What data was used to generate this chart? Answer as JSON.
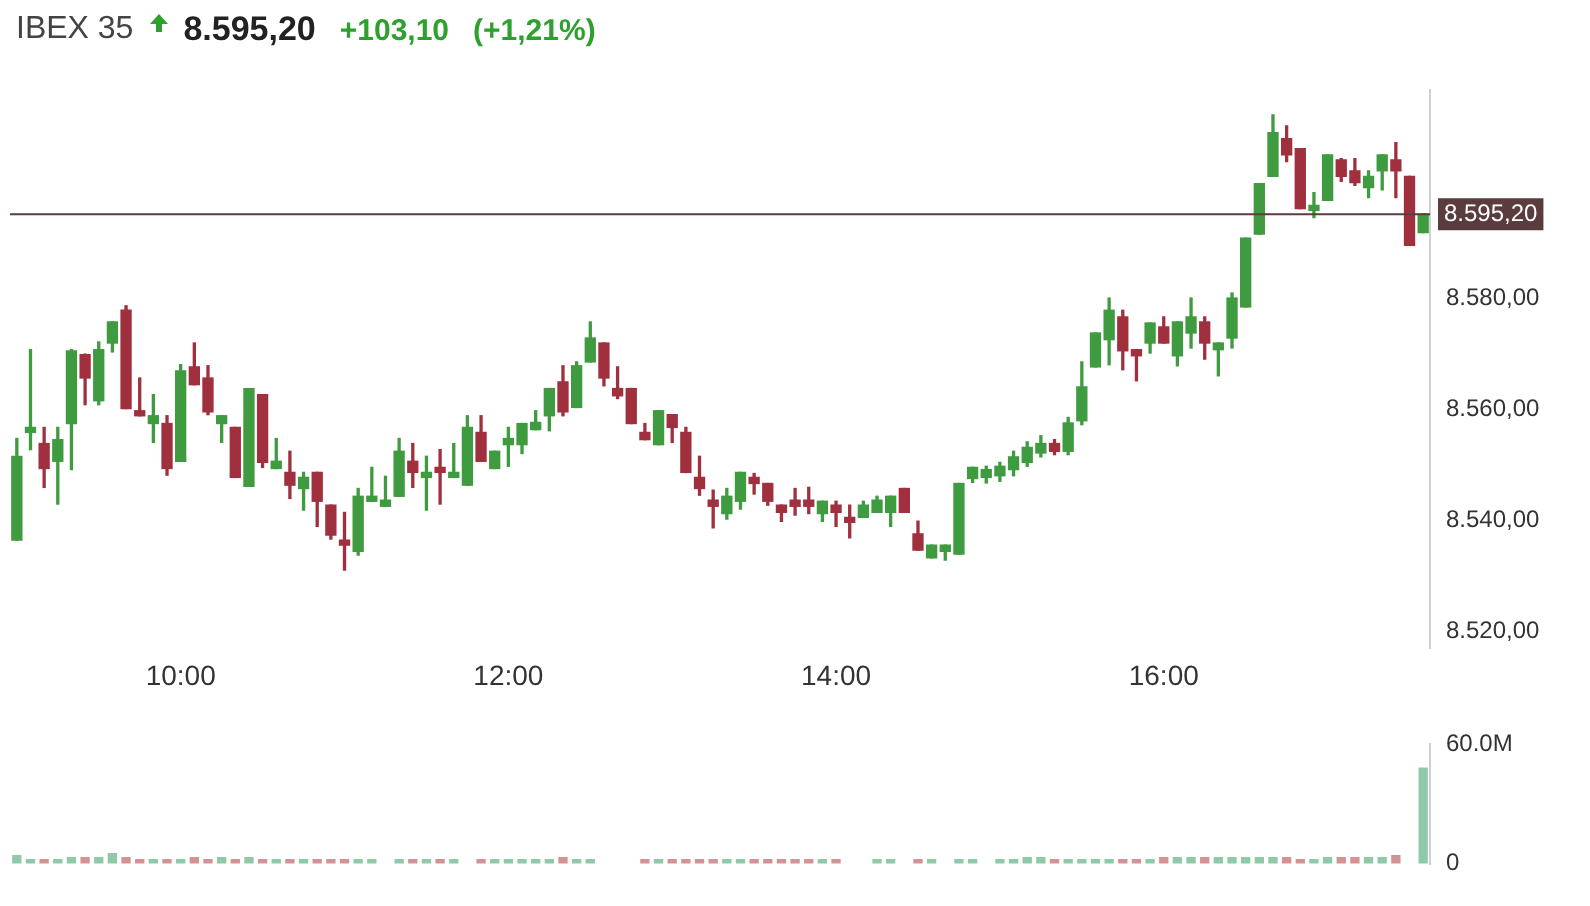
{
  "chart_data": [
    {
      "type": "candlestick",
      "title": "IBEX 35",
      "subtitle": "8.595,20",
      "annotations": [
        "+103,10",
        "(+1,21%)"
      ],
      "categories": [
        null,
        null,
        null,
        null,
        null,
        null,
        null,
        null,
        null,
        null,
        null,
        null,
        "10:00",
        null,
        null,
        null,
        null,
        null,
        null,
        null,
        null,
        null,
        null,
        null,
        null,
        null,
        null,
        null,
        null,
        null,
        null,
        null,
        null,
        null,
        null,
        null,
        "12:00",
        null,
        null,
        null,
        null,
        null,
        null,
        null,
        null,
        null,
        null,
        null,
        null,
        null,
        null,
        null,
        null,
        null,
        null,
        null,
        null,
        null,
        null,
        null,
        "14:00",
        null,
        null,
        null,
        null,
        null,
        null,
        null,
        null,
        null,
        null,
        null,
        null,
        null,
        null,
        null,
        null,
        null,
        null,
        null,
        null,
        null,
        null,
        null,
        "16:00",
        null,
        null,
        null,
        null,
        null,
        null,
        null,
        null,
        null,
        null,
        null,
        null,
        null,
        null,
        null,
        null,
        null,
        null,
        null
      ],
      "ohlc": [
        [
          8536.5,
          8554.8,
          8536.5,
          8551.6
        ],
        [
          8555.9,
          8570.8,
          8552.8,
          8556.8
        ],
        [
          8553.9,
          8556.8,
          8546,
          8549.4
        ],
        [
          8550.7,
          8556.8,
          8543,
          8554.6
        ],
        [
          8557.5,
          8570.8,
          8549.2,
          8570.6
        ],
        [
          8569.9,
          8570,
          8560.9,
          8565.7
        ],
        [
          8561.6,
          8572.2,
          8560.9,
          8570.8
        ],
        [
          8572,
          8575.8,
          8570.4,
          8575.8
        ],
        [
          8577.9,
          8578.7,
          8560.2,
          8560.2
        ],
        [
          8559.8,
          8565.7,
          8558.9,
          8558.9
        ],
        [
          8557.5,
          8562.7,
          8554.1,
          8558.9
        ],
        [
          8557.5,
          8558.9,
          8548.2,
          8549.4
        ],
        [
          8550.7,
          8568.1,
          8550.7,
          8567
        ],
        [
          8567.7,
          8572,
          8564.5,
          8564.5
        ],
        [
          8565.7,
          8567.9,
          8559.1,
          8559.6
        ],
        [
          8557.5,
          8558.9,
          8554.1,
          8558.9
        ],
        [
          8556.8,
          8556.8,
          8547.8,
          8547.8
        ],
        [
          8546.2,
          8563.8,
          8546.2,
          8563.8
        ],
        [
          8562.7,
          8562.7,
          8549.6,
          8550.5
        ],
        [
          8549.4,
          8554.8,
          8549.4,
          8550.7
        ],
        [
          8548.7,
          8552.5,
          8544,
          8546.4
        ],
        [
          8545.8,
          8548.7,
          8541.9,
          8547.8
        ],
        [
          8548.7,
          8548.7,
          8539,
          8543.5
        ],
        [
          8542.8,
          8542.8,
          8536.7,
          8537.4
        ],
        [
          8536.5,
          8541.5,
          8531.1,
          8535.6
        ],
        [
          8534.5,
          8545.8,
          8533.8,
          8544.4
        ],
        [
          8543.5,
          8549.6,
          8543.5,
          8544.4
        ],
        [
          8542.6,
          8548,
          8542.6,
          8543.7
        ],
        [
          8544.4,
          8554.8,
          8544.4,
          8552.5
        ],
        [
          8550.7,
          8553.9,
          8546,
          8548.7
        ],
        [
          8547.8,
          8551.6,
          8541.9,
          8548.7
        ],
        [
          8549.6,
          8552.8,
          8543,
          8548.7
        ],
        [
          8547.8,
          8553.9,
          8547.8,
          8548.7
        ],
        [
          8546.4,
          8558.9,
          8546.4,
          8556.8
        ],
        [
          8555.9,
          8558.9,
          8550.7,
          8550.7
        ],
        [
          8549.4,
          8552.5,
          8549.4,
          8552.5
        ],
        [
          8553.7,
          8556.8,
          8549.8,
          8554.8
        ],
        [
          8553.7,
          8557.5,
          8552.1,
          8557.5
        ],
        [
          8556.4,
          8559.8,
          8556.4,
          8557.7
        ],
        [
          8558.9,
          8563.8,
          8556.2,
          8563.8
        ],
        [
          8565,
          8567.9,
          8558.9,
          8559.6
        ],
        [
          8560.4,
          8568.6,
          8560.4,
          8567.9
        ],
        [
          8568.6,
          8575.8,
          8568.6,
          8572.9
        ],
        [
          8572,
          8572,
          8564.3,
          8565.7
        ],
        [
          8563.8,
          8567.7,
          8562,
          8562.5
        ],
        [
          8563.8,
          8563.8,
          8557.5,
          8557.5
        ],
        [
          8555.9,
          8557.5,
          8554.6,
          8554.6
        ],
        [
          8553.7,
          8559.8,
          8553.7,
          8559.8
        ],
        [
          8559.1,
          8559.1,
          8554.1,
          8556.8
        ],
        [
          8555.9,
          8556.8,
          8548.7,
          8548.7
        ],
        [
          8547.8,
          8551.6,
          8544.6,
          8545.8
        ],
        [
          8543.7,
          8545.5,
          8538.7,
          8542.6
        ],
        [
          8541.3,
          8545.8,
          8540.3,
          8544.4
        ],
        [
          8543.5,
          8548.7,
          8542.1,
          8548.7
        ],
        [
          8547.8,
          8548.5,
          8544.8,
          8546.7
        ],
        [
          8546.7,
          8546.7,
          8542.8,
          8543.5
        ],
        [
          8542.8,
          8542.8,
          8539.9,
          8541.5
        ],
        [
          8543.7,
          8545.8,
          8541,
          8542.6
        ],
        [
          8543.7,
          8546,
          8541.3,
          8542.6
        ],
        [
          8541.3,
          8543.5,
          8539.9,
          8543.5
        ],
        [
          8542.8,
          8543.5,
          8539,
          8541.5
        ],
        [
          8540.6,
          8542.8,
          8536.9,
          8539.7
        ],
        [
          8540.6,
          8543.5,
          8540.6,
          8542.8
        ],
        [
          8541.5,
          8544.4,
          8541.5,
          8543.7
        ],
        [
          8541.5,
          8544.4,
          8539,
          8544.4
        ],
        [
          8545.8,
          8545.8,
          8541.5,
          8541.5
        ],
        [
          8537.6,
          8539.9,
          8534.7,
          8534.7
        ],
        [
          8533.3,
          8535.6,
          8533.3,
          8535.6
        ],
        [
          8534.5,
          8535.6,
          8532.9,
          8535.6
        ],
        [
          8534,
          8546.7,
          8534,
          8546.7
        ],
        [
          8547.6,
          8549.6,
          8546.9,
          8549.6
        ],
        [
          8547.8,
          8549.8,
          8546.8,
          8549.2
        ],
        [
          8548.1,
          8550.5,
          8547.1,
          8549.8
        ],
        [
          8549.2,
          8552.5,
          8548.1,
          8551.5
        ],
        [
          8550.5,
          8554.2,
          8549.8,
          8553.2
        ],
        [
          8552.2,
          8555.3,
          8551.5,
          8553.9
        ],
        [
          8553.9,
          8554.6,
          8551.9,
          8552.5
        ],
        [
          8552.5,
          8558.6,
          8551.9,
          8557.6
        ],
        [
          8558,
          8568.6,
          8557.3,
          8564.1
        ],
        [
          8567.7,
          8573.8,
          8567.7,
          8573.8
        ],
        [
          8572.6,
          8580.1,
          8568.1,
          8577.9
        ],
        [
          8576.7,
          8577.9,
          8567.2,
          8570.6
        ],
        [
          8570.8,
          8570.8,
          8565.2,
          8569.7
        ],
        [
          8572,
          8575.6,
          8570.2,
          8575.6
        ],
        [
          8574.9,
          8576.7,
          8572,
          8572
        ],
        [
          8569.7,
          8575.8,
          8567.9,
          8575.8
        ],
        [
          8573.8,
          8580.1,
          8571.1,
          8576.7
        ],
        [
          8575.8,
          8576.7,
          8569.1,
          8572
        ],
        [
          8570.8,
          8572,
          8566.1,
          8572
        ],
        [
          8572.9,
          8581,
          8571.1,
          8580.1
        ],
        [
          8578.5,
          8590.9,
          8578.5,
          8590.9
        ],
        [
          8591.6,
          8600.7,
          8591.6,
          8600.7
        ],
        [
          8602,
          8613.1,
          8602,
          8609.9
        ],
        [
          8608.8,
          8611.1,
          8604.7,
          8605.9
        ],
        [
          8607,
          8607,
          8596.2,
          8596.2
        ],
        [
          8595.9,
          8599.1,
          8594.6,
          8596.8
        ],
        [
          8597.7,
          8605.9,
          8597.7,
          8605.9
        ],
        [
          8605,
          8605.2,
          8601.1,
          8602
        ],
        [
          8603,
          8605.2,
          8600.4,
          8600.9
        ],
        [
          8600,
          8603,
          8598.2,
          8602
        ],
        [
          8603,
          8605.9,
          8599.6,
          8605.9
        ],
        [
          8605,
          8608.1,
          8598.2,
          8603
        ],
        [
          8602,
          8602,
          8589.6,
          8589.6
        ],
        [
          8591.9,
          8595.2,
          8591.9,
          8595.2
        ]
      ],
      "colors": [
        "#3f9b3f",
        "#3f9b3f",
        "#a0303e",
        "#3f9b3f",
        "#3f9b3f",
        "#a0303e",
        "#3f9b3f",
        "#3f9b3f",
        "#a0303e",
        "#a0303e",
        "#3f9b3f",
        "#a0303e",
        "#3f9b3f",
        "#a0303e",
        "#a0303e",
        "#3f9b3f",
        "#a0303e",
        "#3f9b3f",
        "#a0303e",
        "#3f9b3f",
        "#a0303e",
        "#3f9b3f",
        "#a0303e",
        "#a0303e",
        "#a0303e",
        "#3f9b3f",
        "#3f9b3f",
        "#3f9b3f",
        "#3f9b3f",
        "#a0303e",
        "#3f9b3f",
        "#a0303e",
        "#3f9b3f",
        "#3f9b3f",
        "#a0303e",
        "#3f9b3f",
        "#3f9b3f",
        "#3f9b3f",
        "#3f9b3f",
        "#3f9b3f",
        "#a0303e",
        "#3f9b3f",
        "#3f9b3f",
        "#a0303e",
        "#a0303e",
        "#a0303e",
        "#a0303e",
        "#3f9b3f",
        "#a0303e",
        "#a0303e",
        "#a0303e",
        "#a0303e",
        "#3f9b3f",
        "#3f9b3f",
        "#a0303e",
        "#a0303e",
        "#a0303e",
        "#a0303e",
        "#a0303e",
        "#3f9b3f",
        "#a0303e",
        "#a0303e",
        "#3f9b3f",
        "#3f9b3f",
        "#3f9b3f",
        "#a0303e",
        "#a0303e",
        "#3f9b3f",
        "#3f9b3f",
        "#3f9b3f",
        "#3f9b3f",
        "#3f9b3f",
        "#3f9b3f",
        "#3f9b3f",
        "#3f9b3f",
        "#3f9b3f",
        "#a0303e",
        "#3f9b3f",
        "#3f9b3f",
        "#3f9b3f",
        "#3f9b3f",
        "#a0303e",
        "#a0303e",
        "#3f9b3f",
        "#a0303e",
        "#3f9b3f",
        "#3f9b3f",
        "#a0303e",
        "#3f9b3f",
        "#3f9b3f",
        "#3f9b3f",
        "#3f9b3f",
        "#3f9b3f",
        "#a0303e",
        "#a0303e",
        "#3f9b3f",
        "#3f9b3f",
        "#a0303e",
        "#a0303e",
        "#3f9b3f",
        "#3f9b3f",
        "#a0303e",
        "#a0303e",
        "#3f9b3f"
      ],
      "ylim": [
        8517,
        8617.5
      ],
      "yticks": [
        {
          "value": 8520,
          "label": "8.520,00"
        },
        {
          "value": 8540,
          "label": "8.540,00"
        },
        {
          "value": 8560,
          "label": "8.560,00"
        },
        {
          "value": 8580,
          "label": "8.580,00"
        }
      ],
      "ref_lines": [
        {
          "axis": "y",
          "value": 8595.2,
          "label": "8.595,20",
          "color": "#5a3c3c"
        }
      ]
    },
    {
      "type": "bar",
      "categories": [
        null,
        null,
        null,
        null,
        null,
        null,
        null,
        null,
        null,
        null,
        null,
        null,
        null,
        null,
        null,
        null,
        null,
        null,
        null,
        null,
        null,
        null,
        null,
        null,
        null,
        null,
        null,
        null,
        null,
        null,
        null,
        null,
        null,
        null,
        null,
        null,
        null,
        null,
        null,
        null,
        null,
        null,
        null,
        null,
        null,
        null,
        null,
        null,
        null,
        null,
        null,
        null,
        null,
        null,
        null,
        null,
        null,
        null,
        null,
        null,
        null,
        null,
        null,
        null,
        null,
        null,
        null,
        null,
        null,
        null,
        null,
        null,
        null,
        null,
        null,
        null,
        null,
        null,
        null,
        null,
        null,
        null,
        null,
        null,
        null,
        null,
        null,
        null,
        null,
        null,
        null,
        null,
        null,
        null,
        null,
        null,
        null,
        null,
        null,
        null,
        null,
        null,
        null,
        null
      ],
      "values": [
        4,
        2,
        2,
        2,
        3,
        3,
        3,
        5,
        3,
        2,
        2,
        2,
        2,
        3,
        2,
        3,
        2,
        3,
        2,
        2,
        2,
        2,
        2,
        2,
        2,
        2,
        2,
        null,
        2,
        2,
        2,
        2,
        2,
        null,
        2,
        2,
        2,
        2,
        2,
        2,
        3,
        2,
        2,
        null,
        null,
        null,
        2,
        2,
        2,
        2,
        2,
        2,
        2,
        2,
        2,
        2,
        2,
        2,
        2,
        2,
        2,
        null,
        null,
        2,
        2,
        null,
        2,
        2,
        null,
        2,
        2,
        null,
        2,
        2,
        3,
        3,
        2,
        2,
        2,
        2,
        2,
        2,
        2,
        2,
        3,
        3,
        3,
        3,
        3,
        3,
        3,
        3,
        3,
        3,
        2,
        2,
        3,
        3,
        3,
        3,
        3,
        4,
        null,
        48
      ],
      "colors": [
        "#8fcaa8",
        "#8fcaa8",
        "#d39393",
        "#8fcaa8",
        "#8fcaa8",
        "#d39393",
        "#8fcaa8",
        "#8fcaa8",
        "#d39393",
        "#d39393",
        "#8fcaa8",
        "#d39393",
        "#8fcaa8",
        "#d39393",
        "#d39393",
        "#8fcaa8",
        "#d39393",
        "#8fcaa8",
        "#d39393",
        "#8fcaa8",
        "#d39393",
        "#8fcaa8",
        "#d39393",
        "#d39393",
        "#d39393",
        "#8fcaa8",
        "#8fcaa8",
        "#8fcaa8",
        "#8fcaa8",
        "#d39393",
        "#8fcaa8",
        "#d39393",
        "#8fcaa8",
        "#8fcaa8",
        "#d39393",
        "#8fcaa8",
        "#8fcaa8",
        "#8fcaa8",
        "#8fcaa8",
        "#8fcaa8",
        "#d39393",
        "#8fcaa8",
        "#8fcaa8",
        "#d39393",
        "#d39393",
        "#d39393",
        "#d39393",
        "#8fcaa8",
        "#d39393",
        "#d39393",
        "#d39393",
        "#d39393",
        "#8fcaa8",
        "#8fcaa8",
        "#d39393",
        "#d39393",
        "#d39393",
        "#d39393",
        "#d39393",
        "#8fcaa8",
        "#d39393",
        "#d39393",
        "#8fcaa8",
        "#8fcaa8",
        "#8fcaa8",
        "#d39393",
        "#d39393",
        "#8fcaa8",
        "#8fcaa8",
        "#8fcaa8",
        "#8fcaa8",
        "#8fcaa8",
        "#8fcaa8",
        "#8fcaa8",
        "#8fcaa8",
        "#8fcaa8",
        "#d39393",
        "#8fcaa8",
        "#8fcaa8",
        "#8fcaa8",
        "#8fcaa8",
        "#d39393",
        "#d39393",
        "#8fcaa8",
        "#d39393",
        "#8fcaa8",
        "#8fcaa8",
        "#d39393",
        "#8fcaa8",
        "#8fcaa8",
        "#8fcaa8",
        "#8fcaa8",
        "#8fcaa8",
        "#d39393",
        "#d39393",
        "#8fcaa8",
        "#8fcaa8",
        "#d39393",
        "#d39393",
        "#8fcaa8",
        "#8fcaa8",
        "#d39393",
        "#d39393",
        "#8fcaa8"
      ],
      "ylim": [
        0,
        60
      ],
      "yticks": [
        {
          "value": 60,
          "label": "60.0M"
        },
        0
      ],
      "tick_labels": "y"
    }
  ]
}
